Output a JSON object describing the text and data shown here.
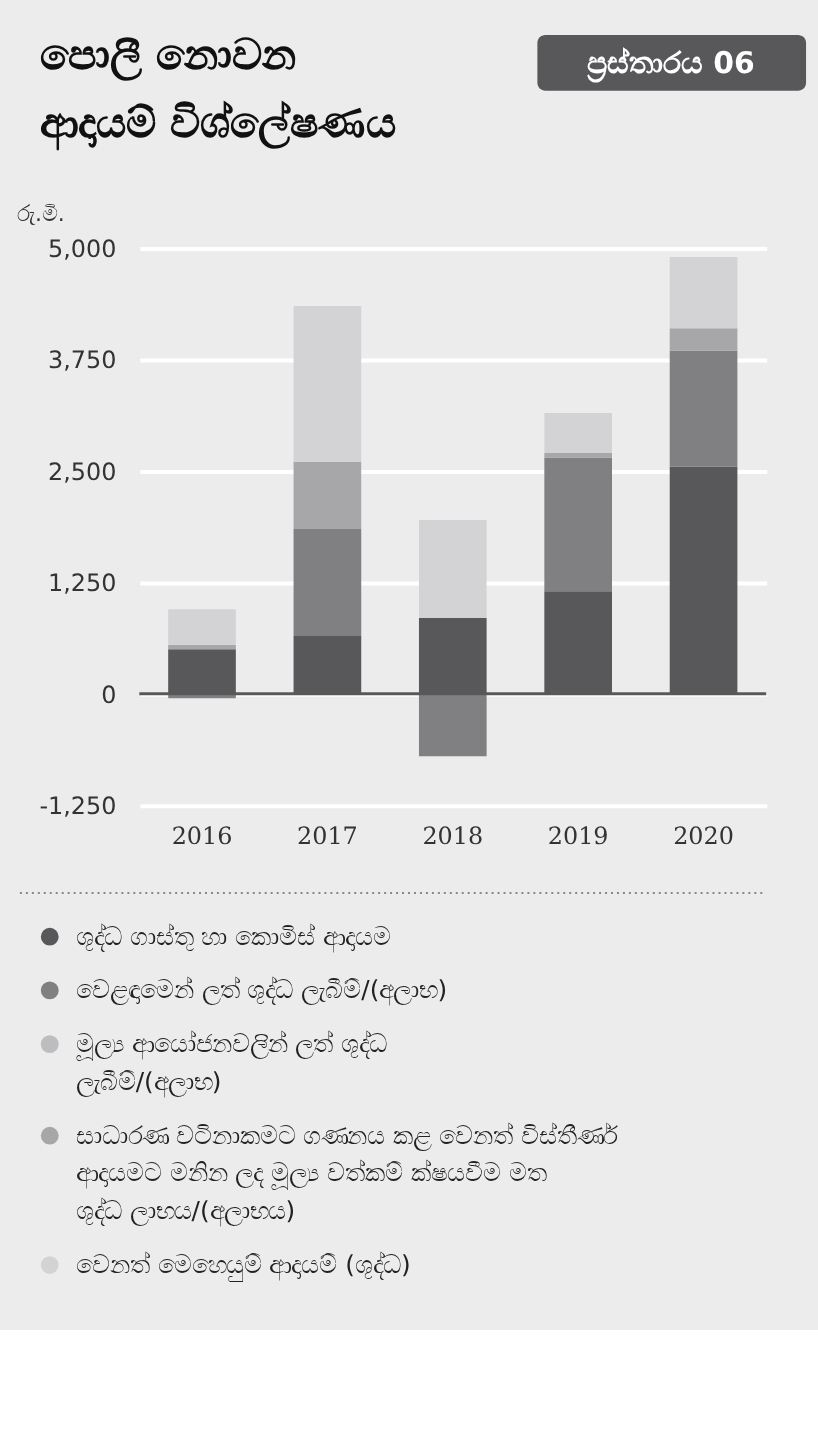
{
  "chart_data": {
    "type": "bar",
    "title": "පොලී නොවන ආදායම් විශ්ලේෂණය",
    "annotations": [
      "ප්‍රස්තාරය 06"
    ],
    "ylabel": "රු.මි.",
    "categories": [
      "2016",
      "2017",
      "2018",
      "2019",
      "2020"
    ],
    "stacked": true,
    "series": [
      {
        "name": "ශුද්ධ ගාස්තු හා කොමිස් ආදායම",
        "color": "#58585a",
        "values": [
          500,
          650,
          850,
          1150,
          2550
        ]
      },
      {
        "name": "වෙළඳාමෙන් ලත් ශුද්ධ ලැබීම්/(අලාභ)",
        "color": "#808083",
        "values": [
          -50,
          1200,
          -700,
          1500,
          1300
        ]
      },
      {
        "name": "මූල්‍ය ආයෝජනවලින් ලත් ශුද්ධ ලැබීම්/(අලාභ)",
        "color": "#bdbdbf",
        "values": [
          null,
          null,
          null,
          null,
          null
        ]
      },
      {
        "name": "සාධාරණ වටිනාකමට ගණනය කළ වෙනත් විස්තීර්ණ ආදායමට මනින ලද මූල්‍ය වත්කම් ක්ෂයවීම මත ශුද්ධ ලාභය/(අලාභය)",
        "color": "#a7a7a9",
        "values": [
          50,
          750,
          null,
          50,
          250
        ]
      },
      {
        "name": "වෙනත් මෙහෙයුම් ආදායම් (ශුද්ධ)",
        "color": "#d3d3d5",
        "values": [
          400,
          1750,
          1100,
          450,
          800
        ]
      }
    ],
    "ylim": [
      -1250,
      5000
    ],
    "yticks": [
      {
        "value": -1250,
        "label": "-1,250"
      },
      0,
      {
        "value": 1250,
        "label": "1,250"
      },
      {
        "value": 2500,
        "label": "2,500"
      },
      {
        "value": 3750,
        "label": "3,750"
      },
      {
        "value": 5000,
        "label": "5,000"
      }
    ],
    "grid": "y",
    "ref_lines": [
      {
        "axis": "y",
        "value": 0,
        "color": "#58585a"
      }
    ],
    "legend": "bottom"
  }
}
